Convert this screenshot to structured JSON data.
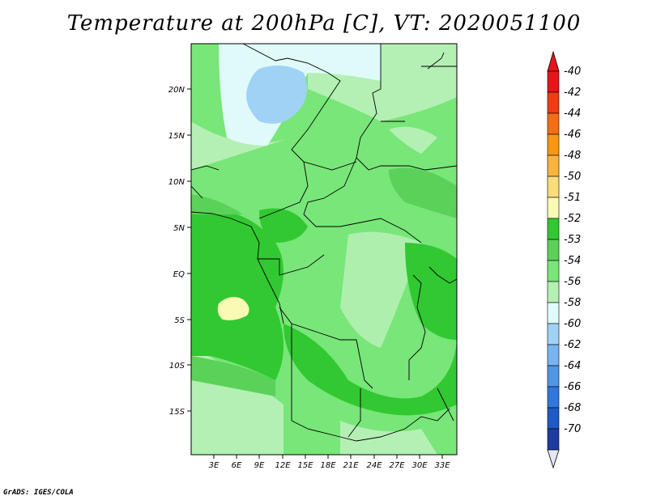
{
  "title": "Temperature at 200hPa [C], VT: 2020051100",
  "credit": "GrADS: IGES/COLA",
  "map": {
    "lat_labels": [
      "20N",
      "15N",
      "10N",
      "5N",
      "EQ",
      "5S",
      "10S",
      "15S"
    ],
    "lon_labels": [
      "3E",
      "6E",
      "9E",
      "12E",
      "15E",
      "18E",
      "21E",
      "24E",
      "27E",
      "30E",
      "33E"
    ]
  },
  "legend": {
    "levels": [
      {
        "label": "-40",
        "color": "#e8141c"
      },
      {
        "label": "-42",
        "color": "#f03c14"
      },
      {
        "label": "-44",
        "color": "#f56e14"
      },
      {
        "label": "-46",
        "color": "#fa9614"
      },
      {
        "label": "-48",
        "color": "#fab43c"
      },
      {
        "label": "-50",
        "color": "#fadc78"
      },
      {
        "label": "-51",
        "color": "#fafab4"
      },
      {
        "label": "-52",
        "color": "#32c832"
      },
      {
        "label": "-53",
        "color": "#5ad25a"
      },
      {
        "label": "-54",
        "color": "#78e678"
      },
      {
        "label": "-56",
        "color": "#b4f0b4"
      },
      {
        "label": "-58",
        "color": "#e0fafa"
      },
      {
        "label": "-60",
        "color": "#a0d2f5"
      },
      {
        "label": "-62",
        "color": "#78b4f0"
      },
      {
        "label": "-64",
        "color": "#5096e6"
      },
      {
        "label": "-66",
        "color": "#3278dc"
      },
      {
        "label": "-68",
        "color": "#1e5ac8"
      },
      {
        "label": "-70",
        "color": "#1e3ca0"
      }
    ]
  }
}
